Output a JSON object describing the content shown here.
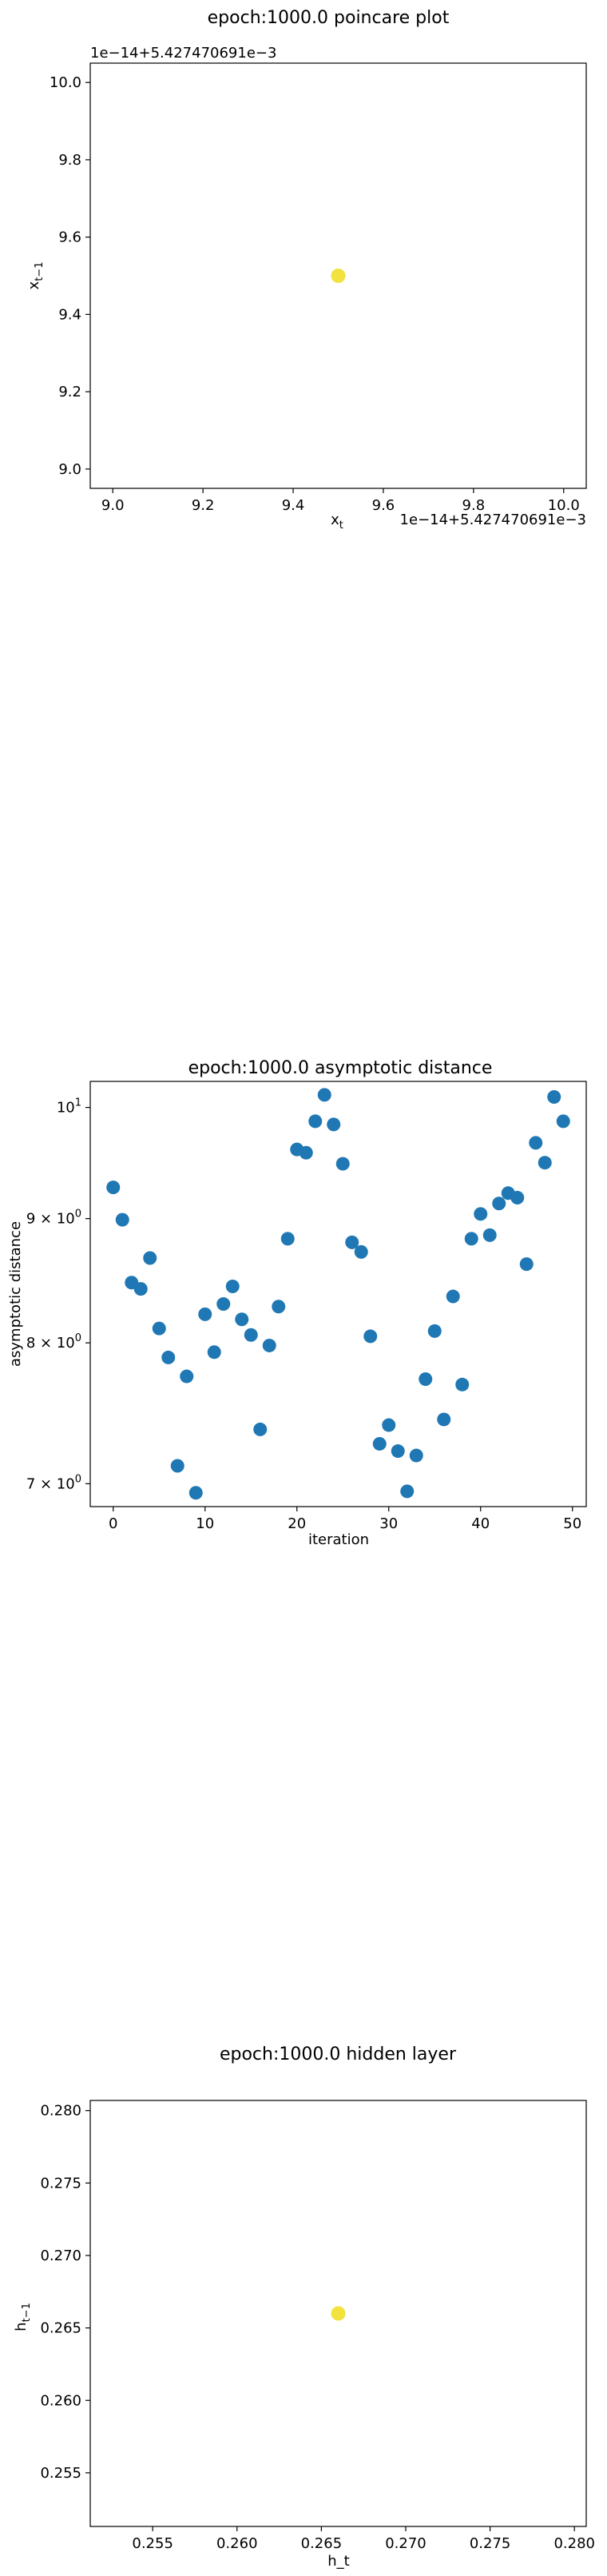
{
  "chart_data": [
    {
      "type": "scatter",
      "title": "epoch:1000.0 poincare plot",
      "xlabel": "x",
      "xlabel_sub": "t",
      "ylabel": "x",
      "ylabel_sub": "t−1",
      "x_offset_text": "1e−14+5.427470691e−3",
      "y_offset_text": "1e−14+5.427470691e−3",
      "xlim": [
        8.95,
        10.05
      ],
      "ylim": [
        8.95,
        10.05
      ],
      "xticks": [
        9.0,
        9.2,
        9.4,
        9.6,
        9.8,
        10.0
      ],
      "xtick_labels": [
        "9.0",
        "9.2",
        "9.4",
        "9.6",
        "9.8",
        "10.0"
      ],
      "yticks": [
        9.0,
        9.2,
        9.4,
        9.6,
        9.8,
        10.0
      ],
      "ytick_labels": [
        "9.0",
        "9.2",
        "9.4",
        "9.6",
        "9.8",
        "10.0"
      ],
      "points": [
        {
          "x": 9.5,
          "y": 9.5
        }
      ],
      "color": "#f1e23d",
      "grid": false
    },
    {
      "type": "scatter",
      "title": "epoch:1000.0 asymptotic distance",
      "xlabel": "iteration",
      "ylabel": "asymptotic distance",
      "yscale": "log",
      "xlim": [
        -2.5,
        51.5
      ],
      "ylim": [
        6.85,
        10.25
      ],
      "xticks": [
        0,
        10,
        20,
        30,
        40,
        50
      ],
      "xtick_labels": [
        "0",
        "10",
        "20",
        "30",
        "40",
        "50"
      ],
      "yticks": [
        7,
        8,
        9,
        10
      ],
      "ytick_labels": [
        {
          "base": "7 × 10",
          "exp": "0"
        },
        {
          "base": "8 × 10",
          "exp": "0"
        },
        {
          "base": "9 × 10",
          "exp": "0"
        },
        {
          "base": "10",
          "exp": "1"
        }
      ],
      "x": [
        0,
        1,
        2,
        3,
        4,
        5,
        6,
        7,
        8,
        9,
        10,
        11,
        12,
        13,
        14,
        15,
        16,
        17,
        18,
        19,
        20,
        21,
        22,
        23,
        24,
        25,
        26,
        27,
        28,
        29,
        30,
        31,
        32,
        33,
        34,
        35,
        36,
        37,
        38,
        39,
        40,
        41,
        42,
        43,
        44,
        45,
        46,
        47,
        48,
        49
      ],
      "y": [
        9.27,
        8.99,
        8.47,
        8.42,
        8.67,
        8.11,
        7.89,
        7.12,
        7.75,
        6.94,
        8.22,
        7.93,
        8.3,
        8.44,
        8.18,
        8.06,
        7.37,
        7.98,
        8.28,
        8.83,
        9.61,
        9.58,
        9.87,
        10.12,
        9.84,
        9.48,
        8.8,
        8.72,
        8.05,
        7.27,
        7.4,
        7.22,
        6.95,
        7.19,
        7.73,
        8.09,
        7.44,
        8.36,
        7.69,
        8.83,
        9.04,
        8.86,
        9.13,
        9.22,
        9.18,
        8.62,
        9.67,
        9.49,
        10.1,
        9.87
      ],
      "color": "#1f77b4",
      "grid": false
    },
    {
      "type": "scatter",
      "title": "epoch:1000.0 hidden layer",
      "xlabel": "h_t",
      "ylabel": "h",
      "ylabel_sub": "t−1",
      "xlim": [
        0.2513,
        0.2807
      ],
      "ylim": [
        0.2513,
        0.2807
      ],
      "xticks": [
        0.255,
        0.26,
        0.265,
        0.27,
        0.275,
        0.28
      ],
      "xtick_labels": [
        "0.255",
        "0.260",
        "0.265",
        "0.270",
        "0.275",
        "0.280"
      ],
      "yticks": [
        0.255,
        0.26,
        0.265,
        0.27,
        0.275,
        0.28
      ],
      "ytick_labels": [
        "0.255",
        "0.260",
        "0.265",
        "0.270",
        "0.275",
        "0.280"
      ],
      "points": [
        {
          "x": 0.266,
          "y": 0.266
        }
      ],
      "color": "#f1e23d",
      "grid": false
    }
  ]
}
